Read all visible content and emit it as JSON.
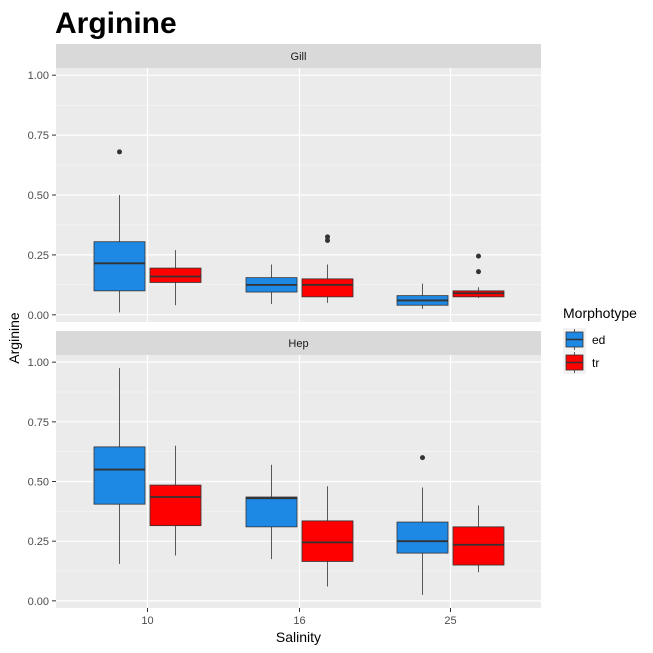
{
  "chart_data": {
    "type": "boxplot",
    "title": "Arginine",
    "xlabel": "Salinity",
    "ylabel": "Arginine",
    "categories": [
      "10",
      "16",
      "25"
    ],
    "ylim": [
      -0.03,
      1.03
    ],
    "yticks": [
      "0.00",
      "0.25",
      "0.50",
      "0.75",
      "1.00"
    ],
    "grid": true,
    "legend": {
      "title": "Morphotype",
      "position": "right",
      "entries": [
        {
          "name": "ed",
          "color": "#1e88e5"
        },
        {
          "name": "tr",
          "color": "#ff0000"
        }
      ]
    },
    "facets": [
      {
        "name": "Gill",
        "boxes": [
          {
            "category": "10",
            "group": "ed",
            "min": 0.01,
            "q1": 0.1,
            "median": 0.215,
            "q3": 0.305,
            "max": 0.5,
            "outliers": [
              0.68
            ]
          },
          {
            "category": "10",
            "group": "tr",
            "min": 0.04,
            "q1": 0.135,
            "median": 0.16,
            "q3": 0.195,
            "max": 0.27,
            "outliers": []
          },
          {
            "category": "16",
            "group": "ed",
            "min": 0.045,
            "q1": 0.095,
            "median": 0.125,
            "q3": 0.155,
            "max": 0.21,
            "outliers": []
          },
          {
            "category": "16",
            "group": "tr",
            "min": 0.05,
            "q1": 0.075,
            "median": 0.125,
            "q3": 0.15,
            "max": 0.21,
            "outliers": [
              0.31,
              0.325
            ]
          },
          {
            "category": "25",
            "group": "ed",
            "min": 0.025,
            "q1": 0.04,
            "median": 0.06,
            "q3": 0.08,
            "max": 0.13,
            "outliers": []
          },
          {
            "category": "25",
            "group": "tr",
            "min": 0.07,
            "q1": 0.075,
            "median": 0.09,
            "q3": 0.1,
            "max": 0.115,
            "outliers": [
              0.18,
              0.245
            ]
          }
        ]
      },
      {
        "name": "Hep",
        "boxes": [
          {
            "category": "10",
            "group": "ed",
            "min": 0.155,
            "q1": 0.405,
            "median": 0.55,
            "q3": 0.645,
            "max": 0.975,
            "outliers": []
          },
          {
            "category": "10",
            "group": "tr",
            "min": 0.19,
            "q1": 0.315,
            "median": 0.435,
            "q3": 0.485,
            "max": 0.65,
            "outliers": []
          },
          {
            "category": "16",
            "group": "ed",
            "min": 0.175,
            "q1": 0.31,
            "median": 0.43,
            "q3": 0.435,
            "max": 0.57,
            "outliers": []
          },
          {
            "category": "16",
            "group": "tr",
            "min": 0.06,
            "q1": 0.165,
            "median": 0.245,
            "q3": 0.335,
            "max": 0.48,
            "outliers": []
          },
          {
            "category": "25",
            "group": "ed",
            "min": 0.025,
            "q1": 0.2,
            "median": 0.25,
            "q3": 0.33,
            "max": 0.475,
            "outliers": [
              0.6
            ]
          },
          {
            "category": "25",
            "group": "tr",
            "min": 0.12,
            "q1": 0.15,
            "median": 0.235,
            "q3": 0.31,
            "max": 0.4,
            "outliers": []
          }
        ]
      }
    ]
  }
}
